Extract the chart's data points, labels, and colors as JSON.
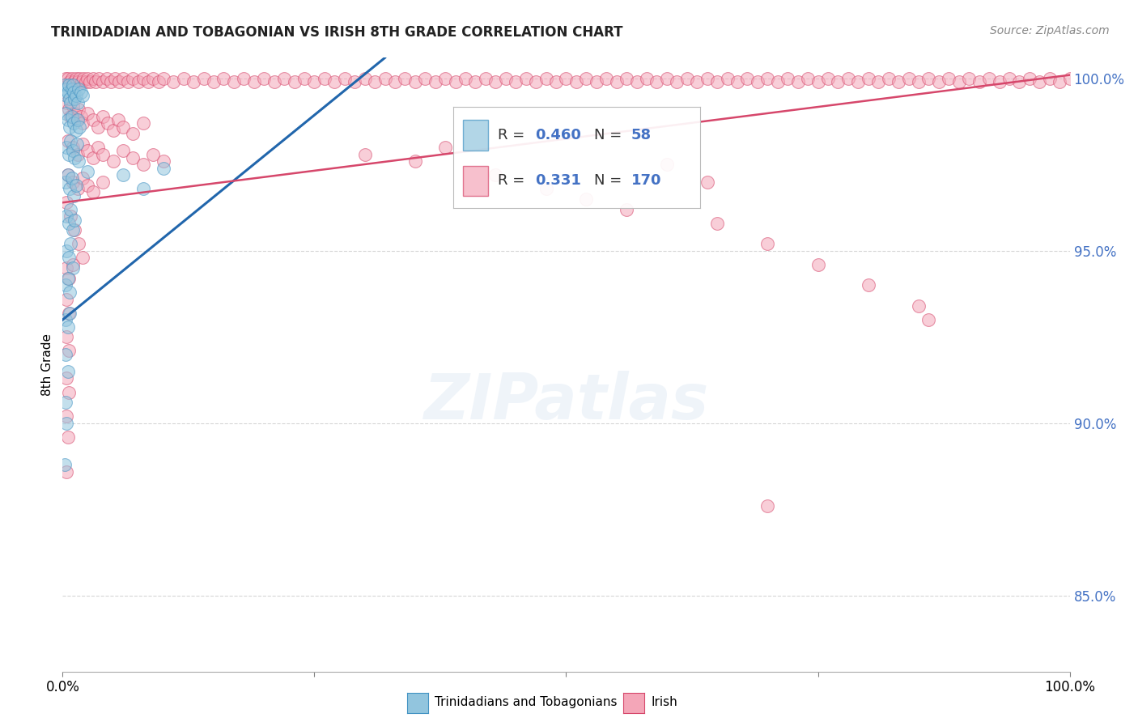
{
  "title": "TRINIDADIAN AND TOBAGONIAN VS IRISH 8TH GRADE CORRELATION CHART",
  "source": "Source: ZipAtlas.com",
  "ylabel": "8th Grade",
  "color_blue": "#92c5de",
  "color_pink": "#f4a6b8",
  "edge_blue": "#4393c3",
  "edge_pink": "#d6476b",
  "trendline_blue": "#2166ac",
  "trendline_pink": "#d6476b",
  "background_color": "#ffffff",
  "xlim": [
    0.0,
    1.0
  ],
  "ylim": [
    0.828,
    1.006
  ],
  "yticks": [
    0.85,
    0.9,
    0.95,
    1.0
  ],
  "ytick_labels": [
    "85.0%",
    "90.0%",
    "95.0%",
    "100.0%"
  ],
  "blue_trend_x": [
    0.0,
    0.32
  ],
  "blue_trend_y": [
    0.93,
    1.006
  ],
  "pink_trend_x": [
    0.0,
    1.0
  ],
  "pink_trend_y": [
    0.964,
    1.001
  ],
  "blue_scatter": [
    [
      0.002,
      0.998
    ],
    [
      0.003,
      0.997
    ],
    [
      0.004,
      0.995
    ],
    [
      0.005,
      0.996
    ],
    [
      0.006,
      0.998
    ],
    [
      0.007,
      0.994
    ],
    [
      0.008,
      0.993
    ],
    [
      0.009,
      0.997
    ],
    [
      0.01,
      0.998
    ],
    [
      0.011,
      0.996
    ],
    [
      0.012,
      0.994
    ],
    [
      0.013,
      0.995
    ],
    [
      0.015,
      0.993
    ],
    [
      0.016,
      0.997
    ],
    [
      0.018,
      0.996
    ],
    [
      0.02,
      0.995
    ],
    [
      0.003,
      0.99
    ],
    [
      0.005,
      0.988
    ],
    [
      0.007,
      0.986
    ],
    [
      0.009,
      0.989
    ],
    [
      0.011,
      0.987
    ],
    [
      0.013,
      0.985
    ],
    [
      0.015,
      0.988
    ],
    [
      0.017,
      0.986
    ],
    [
      0.004,
      0.98
    ],
    [
      0.006,
      0.978
    ],
    [
      0.008,
      0.982
    ],
    [
      0.01,
      0.979
    ],
    [
      0.012,
      0.977
    ],
    [
      0.014,
      0.981
    ],
    [
      0.016,
      0.976
    ],
    [
      0.003,
      0.97
    ],
    [
      0.005,
      0.972
    ],
    [
      0.007,
      0.968
    ],
    [
      0.009,
      0.971
    ],
    [
      0.011,
      0.966
    ],
    [
      0.013,
      0.969
    ],
    [
      0.025,
      0.973
    ],
    [
      0.06,
      0.972
    ],
    [
      0.004,
      0.96
    ],
    [
      0.006,
      0.958
    ],
    [
      0.008,
      0.962
    ],
    [
      0.01,
      0.956
    ],
    [
      0.012,
      0.959
    ],
    [
      0.08,
      0.968
    ],
    [
      0.004,
      0.95
    ],
    [
      0.006,
      0.948
    ],
    [
      0.008,
      0.952
    ],
    [
      0.01,
      0.945
    ],
    [
      0.003,
      0.94
    ],
    [
      0.005,
      0.942
    ],
    [
      0.007,
      0.938
    ],
    [
      0.1,
      0.974
    ],
    [
      0.003,
      0.93
    ],
    [
      0.005,
      0.928
    ],
    [
      0.007,
      0.932
    ],
    [
      0.003,
      0.92
    ],
    [
      0.005,
      0.915
    ],
    [
      0.003,
      0.906
    ],
    [
      0.004,
      0.9
    ],
    [
      0.002,
      0.888
    ]
  ],
  "pink_scatter": [
    [
      0.003,
      1.0
    ],
    [
      0.005,
      1.0
    ],
    [
      0.007,
      0.999
    ],
    [
      0.009,
      1.0
    ],
    [
      0.011,
      0.999
    ],
    [
      0.013,
      1.0
    ],
    [
      0.015,
      0.999
    ],
    [
      0.017,
      1.0
    ],
    [
      0.019,
      0.999
    ],
    [
      0.021,
      1.0
    ],
    [
      0.023,
      0.999
    ],
    [
      0.025,
      1.0
    ],
    [
      0.027,
      0.999
    ],
    [
      0.03,
      1.0
    ],
    [
      0.033,
      0.999
    ],
    [
      0.036,
      1.0
    ],
    [
      0.04,
      0.999
    ],
    [
      0.044,
      1.0
    ],
    [
      0.048,
      0.999
    ],
    [
      0.052,
      1.0
    ],
    [
      0.056,
      0.999
    ],
    [
      0.06,
      1.0
    ],
    [
      0.065,
      0.999
    ],
    [
      0.07,
      1.0
    ],
    [
      0.075,
      0.999
    ],
    [
      0.08,
      1.0
    ],
    [
      0.085,
      0.999
    ],
    [
      0.09,
      1.0
    ],
    [
      0.095,
      0.999
    ],
    [
      0.1,
      1.0
    ],
    [
      0.11,
      0.999
    ],
    [
      0.12,
      1.0
    ],
    [
      0.13,
      0.999
    ],
    [
      0.14,
      1.0
    ],
    [
      0.15,
      0.999
    ],
    [
      0.16,
      1.0
    ],
    [
      0.17,
      0.999
    ],
    [
      0.18,
      1.0
    ],
    [
      0.19,
      0.999
    ],
    [
      0.2,
      1.0
    ],
    [
      0.21,
      0.999
    ],
    [
      0.22,
      1.0
    ],
    [
      0.23,
      0.999
    ],
    [
      0.24,
      1.0
    ],
    [
      0.25,
      0.999
    ],
    [
      0.26,
      1.0
    ],
    [
      0.27,
      0.999
    ],
    [
      0.28,
      1.0
    ],
    [
      0.29,
      0.999
    ],
    [
      0.3,
      1.0
    ],
    [
      0.31,
      0.999
    ],
    [
      0.32,
      1.0
    ],
    [
      0.33,
      0.999
    ],
    [
      0.34,
      1.0
    ],
    [
      0.35,
      0.999
    ],
    [
      0.36,
      1.0
    ],
    [
      0.37,
      0.999
    ],
    [
      0.38,
      1.0
    ],
    [
      0.39,
      0.999
    ],
    [
      0.4,
      1.0
    ],
    [
      0.41,
      0.999
    ],
    [
      0.42,
      1.0
    ],
    [
      0.43,
      0.999
    ],
    [
      0.44,
      1.0
    ],
    [
      0.45,
      0.999
    ],
    [
      0.46,
      1.0
    ],
    [
      0.47,
      0.999
    ],
    [
      0.48,
      1.0
    ],
    [
      0.49,
      0.999
    ],
    [
      0.5,
      1.0
    ],
    [
      0.51,
      0.999
    ],
    [
      0.52,
      1.0
    ],
    [
      0.53,
      0.999
    ],
    [
      0.54,
      1.0
    ],
    [
      0.55,
      0.999
    ],
    [
      0.56,
      1.0
    ],
    [
      0.57,
      0.999
    ],
    [
      0.58,
      1.0
    ],
    [
      0.59,
      0.999
    ],
    [
      0.6,
      1.0
    ],
    [
      0.61,
      0.999
    ],
    [
      0.62,
      1.0
    ],
    [
      0.63,
      0.999
    ],
    [
      0.64,
      1.0
    ],
    [
      0.65,
      0.999
    ],
    [
      0.66,
      1.0
    ],
    [
      0.67,
      0.999
    ],
    [
      0.68,
      1.0
    ],
    [
      0.69,
      0.999
    ],
    [
      0.7,
      1.0
    ],
    [
      0.71,
      0.999
    ],
    [
      0.72,
      1.0
    ],
    [
      0.73,
      0.999
    ],
    [
      0.74,
      1.0
    ],
    [
      0.75,
      0.999
    ],
    [
      0.76,
      1.0
    ],
    [
      0.77,
      0.999
    ],
    [
      0.78,
      1.0
    ],
    [
      0.79,
      0.999
    ],
    [
      0.8,
      1.0
    ],
    [
      0.81,
      0.999
    ],
    [
      0.82,
      1.0
    ],
    [
      0.83,
      0.999
    ],
    [
      0.84,
      1.0
    ],
    [
      0.85,
      0.999
    ],
    [
      0.86,
      1.0
    ],
    [
      0.87,
      0.999
    ],
    [
      0.88,
      1.0
    ],
    [
      0.89,
      0.999
    ],
    [
      0.9,
      1.0
    ],
    [
      0.91,
      0.999
    ],
    [
      0.92,
      1.0
    ],
    [
      0.93,
      0.999
    ],
    [
      0.94,
      1.0
    ],
    [
      0.95,
      0.999
    ],
    [
      0.96,
      1.0
    ],
    [
      0.97,
      0.999
    ],
    [
      0.98,
      1.0
    ],
    [
      0.99,
      0.999
    ],
    [
      1.0,
      1.0
    ],
    [
      0.004,
      0.993
    ],
    [
      0.006,
      0.991
    ],
    [
      0.008,
      0.989
    ],
    [
      0.01,
      0.992
    ],
    [
      0.012,
      0.99
    ],
    [
      0.014,
      0.988
    ],
    [
      0.016,
      0.991
    ],
    [
      0.018,
      0.989
    ],
    [
      0.02,
      0.987
    ],
    [
      0.025,
      0.99
    ],
    [
      0.03,
      0.988
    ],
    [
      0.035,
      0.986
    ],
    [
      0.04,
      0.989
    ],
    [
      0.045,
      0.987
    ],
    [
      0.05,
      0.985
    ],
    [
      0.055,
      0.988
    ],
    [
      0.06,
      0.986
    ],
    [
      0.07,
      0.984
    ],
    [
      0.08,
      0.987
    ],
    [
      0.005,
      0.982
    ],
    [
      0.01,
      0.98
    ],
    [
      0.015,
      0.978
    ],
    [
      0.02,
      0.981
    ],
    [
      0.025,
      0.979
    ],
    [
      0.03,
      0.977
    ],
    [
      0.035,
      0.98
    ],
    [
      0.04,
      0.978
    ],
    [
      0.05,
      0.976
    ],
    [
      0.06,
      0.979
    ],
    [
      0.07,
      0.977
    ],
    [
      0.08,
      0.975
    ],
    [
      0.09,
      0.978
    ],
    [
      0.1,
      0.976
    ],
    [
      0.005,
      0.972
    ],
    [
      0.01,
      0.97
    ],
    [
      0.015,
      0.968
    ],
    [
      0.02,
      0.971
    ],
    [
      0.025,
      0.969
    ],
    [
      0.03,
      0.967
    ],
    [
      0.04,
      0.97
    ],
    [
      0.3,
      0.978
    ],
    [
      0.35,
      0.976
    ],
    [
      0.38,
      0.98
    ],
    [
      0.43,
      0.972
    ],
    [
      0.48,
      0.968
    ],
    [
      0.52,
      0.965
    ],
    [
      0.56,
      0.962
    ],
    [
      0.6,
      0.975
    ],
    [
      0.64,
      0.97
    ],
    [
      0.004,
      0.964
    ],
    [
      0.008,
      0.96
    ],
    [
      0.012,
      0.956
    ],
    [
      0.016,
      0.952
    ],
    [
      0.02,
      0.948
    ],
    [
      0.004,
      0.945
    ],
    [
      0.006,
      0.942
    ],
    [
      0.01,
      0.946
    ],
    [
      0.65,
      0.958
    ],
    [
      0.7,
      0.952
    ],
    [
      0.75,
      0.946
    ],
    [
      0.8,
      0.94
    ],
    [
      0.004,
      0.936
    ],
    [
      0.006,
      0.932
    ],
    [
      0.004,
      0.925
    ],
    [
      0.006,
      0.921
    ],
    [
      0.85,
      0.934
    ],
    [
      0.86,
      0.93
    ],
    [
      0.004,
      0.913
    ],
    [
      0.006,
      0.909
    ],
    [
      0.004,
      0.902
    ],
    [
      0.005,
      0.896
    ],
    [
      0.004,
      0.886
    ],
    [
      0.7,
      0.876
    ]
  ]
}
